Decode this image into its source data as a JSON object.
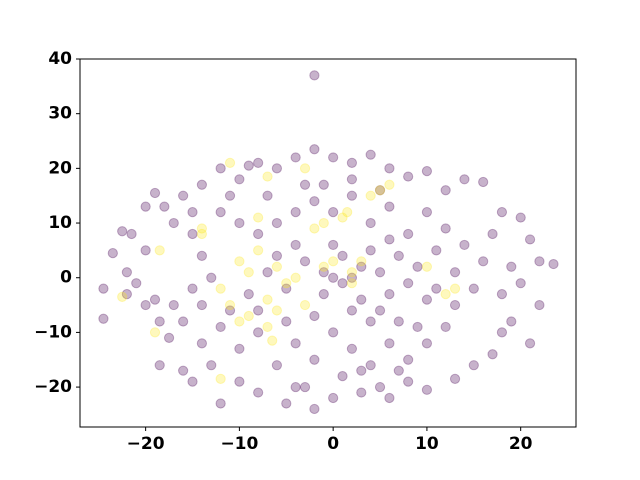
{
  "chart_data": {
    "type": "scatter",
    "xlim": [
      -27,
      25.9
    ],
    "ylim": [
      -27.3,
      40
    ],
    "xticks": [
      {
        "value": -20,
        "label": "−20"
      },
      {
        "value": -10,
        "label": "−10"
      },
      0,
      10,
      20
    ],
    "yticks": [
      {
        "value": -20,
        "label": "−20"
      },
      {
        "value": -10,
        "label": "−10"
      },
      0,
      10,
      20,
      30,
      40
    ],
    "opacity": 0.3,
    "series": [
      {
        "color": "#440154",
        "x": [
          -24.5,
          -24.5,
          -23.5,
          -22.5,
          -21.5,
          -22,
          -21,
          -20,
          -19,
          -18,
          -20,
          -19,
          -18.5,
          -17.5,
          -18.5,
          -16,
          -15,
          -16,
          -14,
          -12,
          -10,
          -8,
          -6,
          -4,
          -2,
          0,
          2,
          4,
          6,
          8,
          10,
          12,
          14,
          16,
          18,
          20,
          21,
          22,
          23.5,
          22,
          21,
          19,
          18,
          17,
          15,
          13,
          10,
          8,
          5,
          3,
          0,
          -2,
          -4,
          -5,
          -8,
          -10,
          -12,
          -13,
          -14,
          -16,
          -17,
          -15,
          -13,
          -14,
          -15,
          -17,
          -12,
          -10,
          -8,
          -6,
          -4,
          -2,
          0,
          2,
          4,
          6,
          8,
          10,
          12,
          14,
          16,
          15,
          13,
          12,
          10,
          8,
          6,
          4,
          2,
          0,
          -2,
          -4,
          -6,
          -8,
          -10,
          -11,
          -9,
          -7,
          -5,
          -3,
          -1,
          1,
          2,
          3,
          4,
          5,
          6,
          7,
          8,
          9,
          10,
          11,
          -2,
          0,
          -4,
          2,
          4,
          6,
          -6,
          -8,
          0,
          1,
          3,
          -1,
          5,
          7,
          9,
          11,
          13,
          -12,
          -14,
          -20,
          -22,
          -3,
          1,
          7,
          -7,
          -11,
          -15,
          17,
          19,
          20,
          2,
          -1,
          5,
          -9,
          -3,
          3,
          -5,
          6,
          18,
          -2
        ],
        "values": [
          -2,
          -7.5,
          4.5,
          8.5,
          8,
          1,
          -1,
          13,
          15.5,
          13,
          5,
          -4,
          -8,
          -11,
          -16,
          -17,
          -19,
          15,
          17,
          20,
          18,
          21,
          20,
          22,
          23.5,
          22,
          21,
          22.5,
          20,
          18.5,
          19.5,
          16,
          18,
          17.5,
          12,
          11,
          7,
          3,
          2.5,
          -5,
          -12,
          -8,
          -3,
          -14,
          -16,
          -18.5,
          -20.5,
          -19,
          -20,
          -21,
          -22,
          -24,
          -20,
          -23,
          -21,
          -19,
          -23,
          -16,
          -12,
          -8,
          -5,
          -2,
          0,
          4,
          8,
          10,
          12,
          10,
          8,
          10,
          12,
          14,
          12,
          15,
          10,
          13,
          8,
          12,
          9,
          6,
          3,
          -2,
          -5,
          -9,
          -12,
          -15,
          -12,
          -16,
          -13,
          -10,
          -15,
          -12,
          -16,
          -10,
          -13,
          -6,
          -3,
          1,
          -2,
          3,
          -3,
          4,
          0,
          -4,
          5,
          1,
          -3,
          4,
          -1,
          2,
          -4,
          5,
          -7,
          6,
          6,
          -6,
          -8,
          7,
          4,
          -6,
          0,
          -1,
          2,
          1,
          -6,
          -8,
          -9,
          -2,
          1,
          -9,
          -5,
          -5,
          -3,
          -20,
          -18,
          -17,
          15,
          15,
          12,
          8,
          2,
          -1,
          18,
          17,
          16,
          20.5,
          17,
          -17,
          -8,
          -22,
          -10,
          37
        ]
      },
      {
        "color": "#fde725",
        "x": [
          -11,
          -7,
          -6.5,
          -10,
          -9,
          -11,
          -12,
          -7,
          -5,
          -6,
          -4,
          -14,
          -14,
          -19,
          -22.5,
          -18.5,
          -8,
          -2,
          -1,
          1,
          2,
          3,
          5,
          6,
          4,
          10,
          12,
          -3,
          -7,
          -12,
          2,
          0,
          -1,
          -9,
          -6,
          13,
          -3,
          1.5,
          -8,
          -10
        ],
        "values": [
          21,
          18.5,
          -11.5,
          -8,
          -7,
          -5,
          -2,
          -4,
          -1,
          2,
          0,
          8,
          9,
          -10,
          -3.5,
          5,
          11,
          9,
          10,
          11,
          1,
          3,
          16,
          17,
          15,
          2,
          -3,
          -5,
          -9,
          -18.5,
          -1,
          3,
          2,
          1,
          -6,
          -2,
          20,
          12,
          5,
          3
        ]
      }
    ]
  }
}
